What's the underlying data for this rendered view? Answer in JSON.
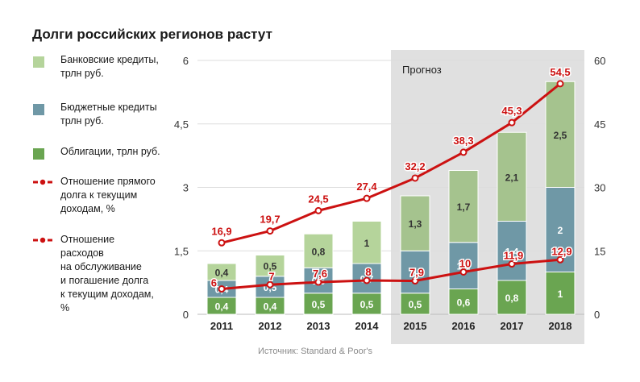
{
  "title": "Долги российских регионов растут",
  "source": "Источник: Standard & Poor's",
  "forecast_label": "Прогноз",
  "colors": {
    "bank": "#b5d49b",
    "bank_forecast": "#a5c38e",
    "budget": "#6f98a6",
    "bonds": "#6aa551",
    "line": "#cc1111",
    "forecast_bg": "#e0e0e0",
    "grid": "#dddddd"
  },
  "legend": [
    {
      "label": "Банковские кредиты,\nтрлн руб.",
      "kind": "swatch",
      "color": "#b5d49b"
    },
    {
      "label": "Бюджетные кредиты\nтрлн руб.",
      "kind": "swatch",
      "color": "#6f98a6"
    },
    {
      "label": "Облигации, трлн руб.",
      "kind": "swatch",
      "color": "#6aa551"
    },
    {
      "label": "Отношение прямого\nдолга к текущим\nдоходам, %",
      "kind": "dashed",
      "color": "#cc1111"
    },
    {
      "label": "Отношение\nрасходов\nна обслуживание\nи погашение долга\nк текущим доходам,\n%",
      "kind": "dashed-circle",
      "color": "#cc1111"
    }
  ],
  "chart_data": {
    "type": "bar",
    "stacked": true,
    "categories": [
      "2011",
      "2012",
      "2013",
      "2014",
      "2015",
      "2016",
      "2017",
      "2018"
    ],
    "forecast_from": "2015",
    "y_left": {
      "ticks": [
        "0",
        "1,5",
        "3",
        "4,5",
        "6"
      ],
      "range": [
        0,
        6
      ]
    },
    "y_right": {
      "ticks": [
        "0",
        "15",
        "30",
        "45",
        "60"
      ],
      "range": [
        0,
        60
      ]
    },
    "series": [
      {
        "name": "Облигации, трлн руб.",
        "axis": "left",
        "values": [
          0.4,
          0.4,
          0.5,
          0.5,
          0.5,
          0.6,
          0.8,
          1
        ],
        "labels": [
          "0,4",
          "0,4",
          "0,5",
          "0,5",
          "0,5",
          "0,6",
          "0,8",
          "1"
        ]
      },
      {
        "name": "Бюджетные кредиты трлн руб.",
        "axis": "left",
        "values": [
          0.4,
          0.5,
          0.6,
          0.7,
          1,
          1.1,
          1.4,
          2
        ],
        "labels": [
          "0,4",
          "0,5",
          "0,6",
          "0,7",
          "1",
          "1,1",
          "1,4",
          "2"
        ]
      },
      {
        "name": "Банковские кредиты, трлн руб.",
        "axis": "left",
        "values": [
          0.4,
          0.5,
          0.8,
          1,
          1.3,
          1.7,
          2.1,
          2.5
        ],
        "labels": [
          "0,4",
          "0,5",
          "0,8",
          "1",
          "1,3",
          "1,7",
          "2,1",
          "2,5"
        ]
      },
      {
        "name": "Отношение прямого долга к текущим доходам, %",
        "axis": "right",
        "type": "line",
        "values": [
          16.9,
          19.7,
          24.5,
          27.4,
          32.2,
          38.3,
          45.3,
          54.5
        ],
        "labels": [
          "16,9",
          "19,7",
          "24,5",
          "27,4",
          "32,2",
          "38,3",
          "45,3",
          "54,5"
        ]
      },
      {
        "name": "Отношение расходов на обслуживание и погашение долга к текущим доходам, %",
        "axis": "right",
        "type": "line",
        "values": [
          6,
          7,
          7.6,
          8,
          7.9,
          10,
          11.9,
          12.9
        ],
        "labels": [
          "6",
          "7",
          "7,6",
          "8",
          "7,9",
          "10",
          "11,9",
          "12,9"
        ]
      }
    ]
  }
}
